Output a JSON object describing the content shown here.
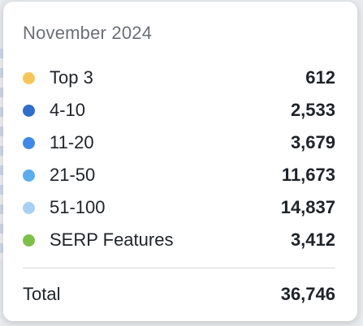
{
  "tooltip": {
    "title": "November 2024",
    "rows": [
      {
        "label": "Top 3",
        "value": "612",
        "color": "#f6c65b"
      },
      {
        "label": "4-10",
        "value": "2,533",
        "color": "#2f6fc9"
      },
      {
        "label": "11-20",
        "value": "3,679",
        "color": "#3f8ae6"
      },
      {
        "label": "21-50",
        "value": "11,673",
        "color": "#5aaef0"
      },
      {
        "label": "51-100",
        "value": "14,837",
        "color": "#a7d0f2"
      },
      {
        "label": "SERP Features",
        "value": "3,412",
        "color": "#7dbf4a"
      }
    ],
    "total_label": "Total",
    "total_value": "36,746"
  }
}
